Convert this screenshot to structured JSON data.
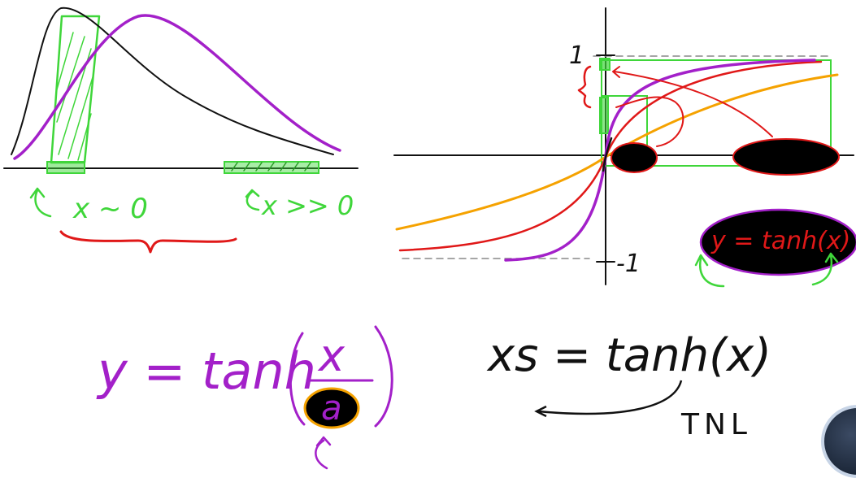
{
  "left_panel": {
    "label_small": "x ~ 0",
    "label_large": "x >> 0"
  },
  "right_panel": {
    "tick_top": "1",
    "tick_bottom": "-1",
    "legend_formula": "y = tanh(x)"
  },
  "formulas": {
    "scaled_lhs": "y = tanh",
    "scaled_num": "x",
    "scaled_den": "a",
    "xs_formula": "xs = tanh(x)",
    "xs_label": "TNL"
  },
  "colors": {
    "green": "#3fd63a",
    "purple": "#a320c9",
    "red": "#e01818",
    "orange": "#f5a200",
    "black": "#111111",
    "gray": "#888888"
  }
}
